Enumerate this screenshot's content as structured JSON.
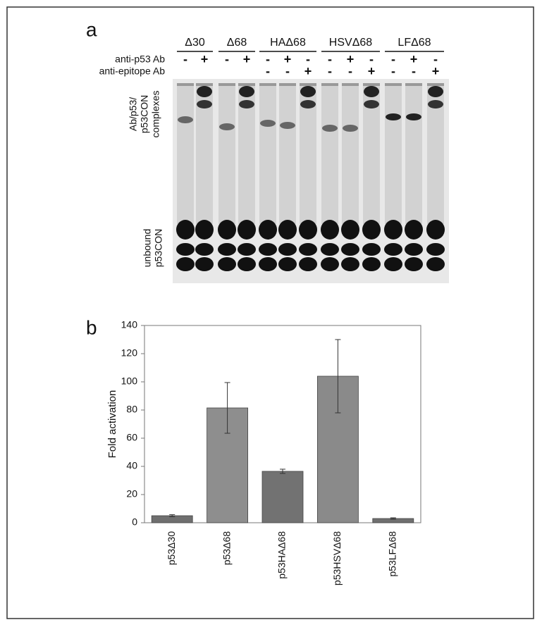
{
  "panel_labels": [
    "a",
    "b"
  ],
  "panel_a": {
    "row_labels": [
      "anti-p53 Ab",
      "anti-epitope Ab"
    ],
    "groups": [
      {
        "label": "Δ30",
        "anti_p53": [
          "-",
          "+"
        ]
      },
      {
        "label": "Δ68",
        "anti_p53": [
          "-",
          "+"
        ]
      },
      {
        "label": "HAΔ68",
        "anti_p53": [
          "-",
          "+",
          "-"
        ],
        "anti_epitope": [
          "-",
          "-",
          "+"
        ]
      },
      {
        "label": "HSVΔ68",
        "anti_p53": [
          "-",
          "+",
          "-"
        ],
        "anti_epitope": [
          "-",
          "-",
          "+"
        ]
      },
      {
        "label": "LFΔ68",
        "anti_p53": [
          "-",
          "+",
          "-"
        ],
        "anti_epitope": [
          "-",
          "-",
          "+"
        ]
      }
    ],
    "complexes_label": [
      "Ab/p53/",
      "p53CON",
      "complexes"
    ],
    "unbound_label": [
      "unbound",
      "p53CON"
    ]
  },
  "chart_data": {
    "type": "bar",
    "y_label": "Fold activation",
    "categories": [
      "p53Δ30",
      "p53Δ68",
      "p53HAΔ68",
      "p53HSVΔ68",
      "p53LFΔ68"
    ],
    "values": [
      5,
      81.5,
      36.5,
      104,
      3
    ],
    "errors": [
      0.7,
      18,
      1.5,
      26,
      0.5
    ],
    "colors": [
      "#6f6f6f",
      "#8e8e8e",
      "#727272",
      "#8a8a8a",
      "#6f6f6f"
    ],
    "ylim": [
      0,
      140
    ],
    "yticks": [
      0,
      20,
      40,
      60,
      80,
      100,
      120,
      140
    ],
    "grid": false
  }
}
